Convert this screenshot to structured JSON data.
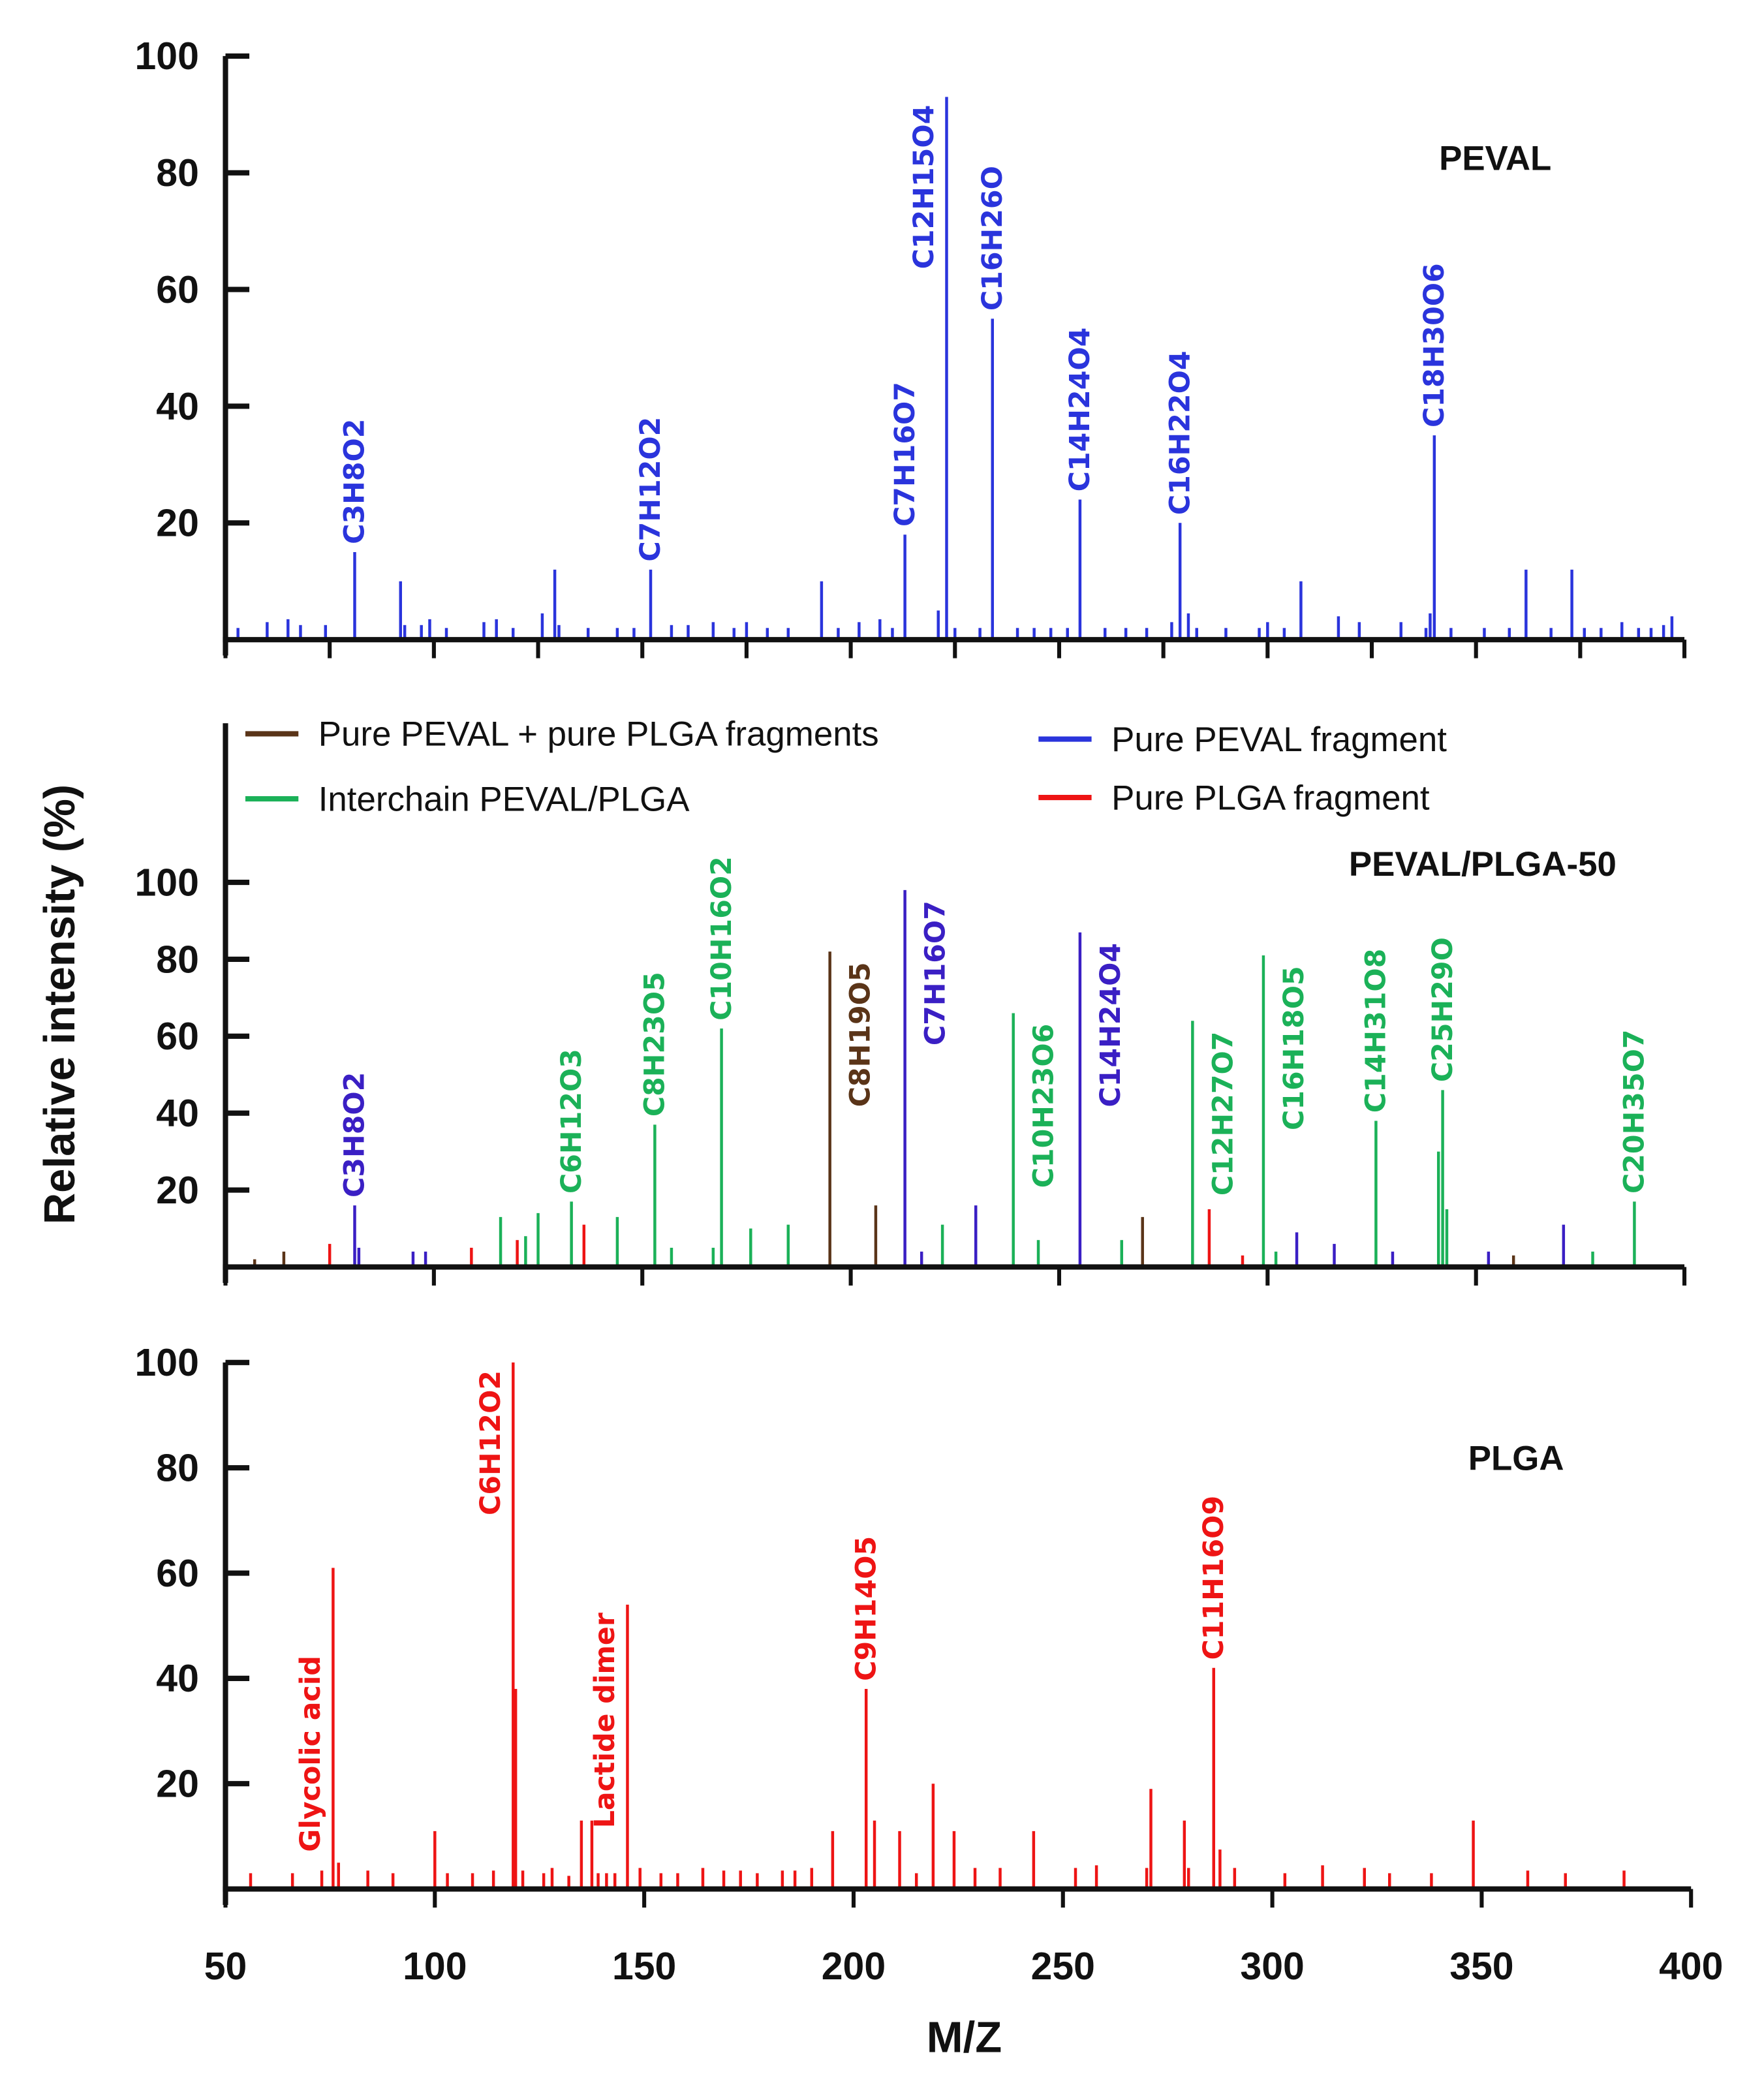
{
  "colors": {
    "blue": "#2a34dc",
    "purple": "#3a1fc4",
    "green": "#1bb158",
    "brown": "#5a3418",
    "red": "#ee1414",
    "axis": "#111111"
  },
  "chart_data": [
    {
      "type": "bar",
      "title": "PEVAL",
      "xlim": [
        50,
        400
      ],
      "ylim": [
        0,
        100
      ],
      "yticks": [
        20,
        40,
        60,
        80,
        100
      ],
      "xtick_step": 25,
      "peaks": [
        {
          "mz": 53,
          "y": 2,
          "c": "blue"
        },
        {
          "mz": 60,
          "y": 3,
          "c": "blue"
        },
        {
          "mz": 65,
          "y": 3.5,
          "c": "blue"
        },
        {
          "mz": 68,
          "y": 2.5,
          "c": "blue"
        },
        {
          "mz": 74,
          "y": 2.5,
          "c": "blue"
        },
        {
          "mz": 81,
          "y": 15,
          "c": "blue",
          "label": "C3H8O2",
          "side": "above"
        },
        {
          "mz": 92,
          "y": 10,
          "c": "blue"
        },
        {
          "mz": 93,
          "y": 2.5,
          "c": "blue"
        },
        {
          "mz": 97,
          "y": 2.5,
          "c": "blue"
        },
        {
          "mz": 99,
          "y": 3.5,
          "c": "blue"
        },
        {
          "mz": 103,
          "y": 2,
          "c": "blue"
        },
        {
          "mz": 112,
          "y": 3,
          "c": "blue"
        },
        {
          "mz": 115,
          "y": 3.5,
          "c": "blue"
        },
        {
          "mz": 119,
          "y": 2,
          "c": "blue"
        },
        {
          "mz": 126,
          "y": 4.5,
          "c": "blue"
        },
        {
          "mz": 129,
          "y": 12,
          "c": "blue"
        },
        {
          "mz": 130,
          "y": 2.5,
          "c": "blue"
        },
        {
          "mz": 137,
          "y": 2,
          "c": "blue"
        },
        {
          "mz": 144,
          "y": 2,
          "c": "blue"
        },
        {
          "mz": 148,
          "y": 2,
          "c": "blue"
        },
        {
          "mz": 152,
          "y": 12,
          "c": "blue",
          "label": "C7H12O2",
          "side": "above"
        },
        {
          "mz": 157,
          "y": 2.5,
          "c": "blue"
        },
        {
          "mz": 161,
          "y": 2.5,
          "c": "blue"
        },
        {
          "mz": 167,
          "y": 3,
          "c": "blue"
        },
        {
          "mz": 172,
          "y": 2,
          "c": "blue"
        },
        {
          "mz": 175,
          "y": 3,
          "c": "blue"
        },
        {
          "mz": 180,
          "y": 2,
          "c": "blue"
        },
        {
          "mz": 185,
          "y": 2,
          "c": "blue"
        },
        {
          "mz": 193,
          "y": 10,
          "c": "blue"
        },
        {
          "mz": 197,
          "y": 2,
          "c": "blue"
        },
        {
          "mz": 202,
          "y": 3,
          "c": "blue"
        },
        {
          "mz": 207,
          "y": 3.5,
          "c": "blue"
        },
        {
          "mz": 210,
          "y": 2,
          "c": "blue"
        },
        {
          "mz": 213,
          "y": 18,
          "c": "blue",
          "label": "C7H16O7",
          "side": "above"
        },
        {
          "mz": 221,
          "y": 5,
          "c": "blue"
        },
        {
          "mz": 223,
          "y": 93,
          "c": "blue",
          "label": "C12H15O4",
          "side": "left"
        },
        {
          "mz": 225,
          "y": 2,
          "c": "blue"
        },
        {
          "mz": 231,
          "y": 2,
          "c": "blue"
        },
        {
          "mz": 234,
          "y": 55,
          "c": "blue",
          "label": "C16H26O",
          "side": "above"
        },
        {
          "mz": 240,
          "y": 2,
          "c": "blue"
        },
        {
          "mz": 244,
          "y": 2,
          "c": "blue"
        },
        {
          "mz": 248,
          "y": 2,
          "c": "blue"
        },
        {
          "mz": 252,
          "y": 2,
          "c": "blue"
        },
        {
          "mz": 255,
          "y": 24,
          "c": "blue",
          "label": "C14H24O4",
          "side": "above"
        },
        {
          "mz": 261,
          "y": 2,
          "c": "blue"
        },
        {
          "mz": 266,
          "y": 2,
          "c": "blue"
        },
        {
          "mz": 271,
          "y": 2,
          "c": "blue"
        },
        {
          "mz": 277,
          "y": 3,
          "c": "blue"
        },
        {
          "mz": 279,
          "y": 20,
          "c": "blue",
          "label": "C16H22O4",
          "side": "above"
        },
        {
          "mz": 281,
          "y": 4.5,
          "c": "blue"
        },
        {
          "mz": 283,
          "y": 2,
          "c": "blue"
        },
        {
          "mz": 290,
          "y": 2,
          "c": "blue"
        },
        {
          "mz": 298,
          "y": 2,
          "c": "blue"
        },
        {
          "mz": 300,
          "y": 3,
          "c": "blue"
        },
        {
          "mz": 304,
          "y": 2,
          "c": "blue"
        },
        {
          "mz": 308,
          "y": 10,
          "c": "blue"
        },
        {
          "mz": 317,
          "y": 4,
          "c": "blue"
        },
        {
          "mz": 322,
          "y": 3,
          "c": "blue"
        },
        {
          "mz": 332,
          "y": 3,
          "c": "blue"
        },
        {
          "mz": 338,
          "y": 2,
          "c": "blue"
        },
        {
          "mz": 339,
          "y": 4.5,
          "c": "blue"
        },
        {
          "mz": 340,
          "y": 35,
          "c": "blue",
          "label": "C18H30O6",
          "side": "above"
        },
        {
          "mz": 344,
          "y": 2,
          "c": "blue"
        },
        {
          "mz": 352,
          "y": 2,
          "c": "blue"
        },
        {
          "mz": 358,
          "y": 2,
          "c": "blue"
        },
        {
          "mz": 362,
          "y": 12,
          "c": "blue"
        },
        {
          "mz": 368,
          "y": 2,
          "c": "blue"
        },
        {
          "mz": 373,
          "y": 12,
          "c": "blue"
        },
        {
          "mz": 376,
          "y": 2,
          "c": "blue"
        },
        {
          "mz": 380,
          "y": 2,
          "c": "blue"
        },
        {
          "mz": 385,
          "y": 3,
          "c": "blue"
        },
        {
          "mz": 389,
          "y": 2,
          "c": "blue"
        },
        {
          "mz": 392,
          "y": 2,
          "c": "blue"
        },
        {
          "mz": 395,
          "y": 2.5,
          "c": "blue"
        },
        {
          "mz": 397,
          "y": 4,
          "c": "blue"
        }
      ]
    },
    {
      "type": "bar",
      "title": "PEVAL/PLGA-50",
      "xlim": [
        50,
        400
      ],
      "ylim": [
        0,
        100
      ],
      "yticks": [
        20,
        40,
        60,
        80,
        100
      ],
      "xtick_step": 50,
      "legend": [
        {
          "label": "Pure PEVAL + pure PLGA fragments",
          "c": "brown",
          "position": "top-left"
        },
        {
          "label": "Interchain PEVAL/PLGA",
          "c": "green",
          "position": "top-left"
        },
        {
          "label": "Pure PEVAL fragment",
          "c": "blue",
          "position": "top-right"
        },
        {
          "label": "Pure PLGA fragment",
          "c": "red",
          "position": "top-right"
        }
      ],
      "peaks": [
        {
          "mz": 57,
          "y": 2,
          "c": "brown"
        },
        {
          "mz": 64,
          "y": 4,
          "c": "brown"
        },
        {
          "mz": 75,
          "y": 6,
          "c": "red"
        },
        {
          "mz": 81,
          "y": 16,
          "c": "purple",
          "label": "C3H8O2",
          "side": "above"
        },
        {
          "mz": 82,
          "y": 5,
          "c": "purple"
        },
        {
          "mz": 95,
          "y": 4,
          "c": "purple"
        },
        {
          "mz": 98,
          "y": 4,
          "c": "purple"
        },
        {
          "mz": 109,
          "y": 5,
          "c": "red"
        },
        {
          "mz": 116,
          "y": 13,
          "c": "green"
        },
        {
          "mz": 120,
          "y": 7,
          "c": "red"
        },
        {
          "mz": 122,
          "y": 8,
          "c": "green"
        },
        {
          "mz": 125,
          "y": 14,
          "c": "green"
        },
        {
          "mz": 133,
          "y": 17,
          "c": "green",
          "label": "C6H12O3",
          "side": "above"
        },
        {
          "mz": 136,
          "y": 11,
          "c": "red"
        },
        {
          "mz": 144,
          "y": 13,
          "c": "green"
        },
        {
          "mz": 153,
          "y": 37,
          "c": "green",
          "label": "C8H23O5",
          "side": "above"
        },
        {
          "mz": 157,
          "y": 5,
          "c": "green"
        },
        {
          "mz": 167,
          "y": 5,
          "c": "green"
        },
        {
          "mz": 169,
          "y": 62,
          "c": "green",
          "label": "C10H16O2",
          "side": "above"
        },
        {
          "mz": 176,
          "y": 10,
          "c": "green"
        },
        {
          "mz": 185,
          "y": 11,
          "c": "green"
        },
        {
          "mz": 195,
          "y": 82,
          "c": "brown",
          "label": "C8H19O5",
          "side": "right"
        },
        {
          "mz": 206,
          "y": 16,
          "c": "brown"
        },
        {
          "mz": 213,
          "y": 98,
          "c": "purple",
          "label": "C7H16O7",
          "side": "right"
        },
        {
          "mz": 217,
          "y": 4,
          "c": "purple"
        },
        {
          "mz": 222,
          "y": 11,
          "c": "green"
        },
        {
          "mz": 230,
          "y": 16,
          "c": "purple"
        },
        {
          "mz": 239,
          "y": 66,
          "c": "green",
          "label": "C10H23O6",
          "side": "right"
        },
        {
          "mz": 245,
          "y": 7,
          "c": "green"
        },
        {
          "mz": 255,
          "y": 87,
          "c": "purple",
          "label": "C14H24O4",
          "side": "right"
        },
        {
          "mz": 265,
          "y": 7,
          "c": "green"
        },
        {
          "mz": 270,
          "y": 13,
          "c": "brown"
        },
        {
          "mz": 282,
          "y": 64,
          "c": "green",
          "label": "C12H27O7",
          "side": "right"
        },
        {
          "mz": 286,
          "y": 15,
          "c": "red"
        },
        {
          "mz": 294,
          "y": 3,
          "c": "red"
        },
        {
          "mz": 299,
          "y": 81,
          "c": "green",
          "label": "C16H18O5",
          "side": "right"
        },
        {
          "mz": 302,
          "y": 4,
          "c": "green"
        },
        {
          "mz": 307,
          "y": 9,
          "c": "purple"
        },
        {
          "mz": 316,
          "y": 6,
          "c": "purple"
        },
        {
          "mz": 326,
          "y": 38,
          "c": "green",
          "label": "C14H31O8",
          "side": "above"
        },
        {
          "mz": 330,
          "y": 4,
          "c": "purple"
        },
        {
          "mz": 341,
          "y": 30,
          "c": "green"
        },
        {
          "mz": 342,
          "y": 46,
          "c": "green",
          "label": "C25H29O",
          "side": "above"
        },
        {
          "mz": 343,
          "y": 15,
          "c": "green"
        },
        {
          "mz": 353,
          "y": 4,
          "c": "purple"
        },
        {
          "mz": 359,
          "y": 3,
          "c": "brown"
        },
        {
          "mz": 371,
          "y": 11,
          "c": "purple"
        },
        {
          "mz": 378,
          "y": 4,
          "c": "green"
        },
        {
          "mz": 388,
          "y": 17,
          "c": "green",
          "label": "C20H35O7",
          "side": "above"
        }
      ]
    },
    {
      "type": "bar",
      "title": "PLGA",
      "xlabel": "M/Z",
      "ylabel": "Relative intensity (%)",
      "xlim": [
        50,
        400
      ],
      "ylim": [
        0,
        100
      ],
      "yticks": [
        20,
        40,
        60,
        80,
        100
      ],
      "xticks": [
        50,
        100,
        150,
        200,
        250,
        300,
        350,
        400
      ],
      "peaks": [
        {
          "mz": 56,
          "y": 3,
          "c": "red"
        },
        {
          "mz": 66,
          "y": 3,
          "c": "red"
        },
        {
          "mz": 73,
          "y": 3.5,
          "c": "red"
        },
        {
          "mz": 75.7,
          "y": 61,
          "c": "red",
          "label": "Glycolic acid",
          "side": "left-low"
        },
        {
          "mz": 77,
          "y": 5,
          "c": "red"
        },
        {
          "mz": 84,
          "y": 3.5,
          "c": "red"
        },
        {
          "mz": 90,
          "y": 3,
          "c": "red"
        },
        {
          "mz": 100,
          "y": 11,
          "c": "red"
        },
        {
          "mz": 103,
          "y": 3,
          "c": "red"
        },
        {
          "mz": 109,
          "y": 3,
          "c": "red"
        },
        {
          "mz": 114,
          "y": 3.5,
          "c": "red"
        },
        {
          "mz": 118.7,
          "y": 100,
          "c": "red",
          "label": "C6H12O2",
          "side": "left"
        },
        {
          "mz": 119.3,
          "y": 38,
          "c": "red"
        },
        {
          "mz": 121,
          "y": 3.5,
          "c": "red"
        },
        {
          "mz": 126,
          "y": 3,
          "c": "red"
        },
        {
          "mz": 128,
          "y": 4,
          "c": "red"
        },
        {
          "mz": 132,
          "y": 2.5,
          "c": "red"
        },
        {
          "mz": 135,
          "y": 13,
          "c": "red"
        },
        {
          "mz": 137.5,
          "y": 13,
          "c": "red"
        },
        {
          "mz": 139,
          "y": 3,
          "c": "red"
        },
        {
          "mz": 141,
          "y": 3,
          "c": "red"
        },
        {
          "mz": 143,
          "y": 3,
          "c": "red"
        },
        {
          "mz": 146,
          "y": 54,
          "c": "red",
          "label": "Lactide dimer",
          "side": "left"
        },
        {
          "mz": 149,
          "y": 4,
          "c": "red"
        },
        {
          "mz": 154,
          "y": 3,
          "c": "red"
        },
        {
          "mz": 158,
          "y": 3,
          "c": "red"
        },
        {
          "mz": 164,
          "y": 4,
          "c": "red"
        },
        {
          "mz": 169,
          "y": 3.5,
          "c": "red"
        },
        {
          "mz": 173,
          "y": 3.5,
          "c": "red"
        },
        {
          "mz": 177,
          "y": 3,
          "c": "red"
        },
        {
          "mz": 183,
          "y": 3.5,
          "c": "red"
        },
        {
          "mz": 186,
          "y": 3.5,
          "c": "red"
        },
        {
          "mz": 190,
          "y": 4,
          "c": "red"
        },
        {
          "mz": 195,
          "y": 11,
          "c": "red"
        },
        {
          "mz": 203,
          "y": 38,
          "c": "red",
          "label": "C9H14O5",
          "side": "above"
        },
        {
          "mz": 205,
          "y": 13,
          "c": "red"
        },
        {
          "mz": 211,
          "y": 11,
          "c": "red"
        },
        {
          "mz": 215,
          "y": 3,
          "c": "red"
        },
        {
          "mz": 219,
          "y": 20,
          "c": "red"
        },
        {
          "mz": 224,
          "y": 11,
          "c": "red"
        },
        {
          "mz": 229,
          "y": 4,
          "c": "red"
        },
        {
          "mz": 235,
          "y": 4,
          "c": "red"
        },
        {
          "mz": 243,
          "y": 11,
          "c": "red"
        },
        {
          "mz": 253,
          "y": 4,
          "c": "red"
        },
        {
          "mz": 258,
          "y": 4.5,
          "c": "red"
        },
        {
          "mz": 270,
          "y": 4,
          "c": "red"
        },
        {
          "mz": 271,
          "y": 19,
          "c": "red"
        },
        {
          "mz": 279,
          "y": 13,
          "c": "red"
        },
        {
          "mz": 280,
          "y": 4,
          "c": "red"
        },
        {
          "mz": 286,
          "y": 42,
          "c": "red",
          "label": "C11H16O9",
          "side": "above"
        },
        {
          "mz": 287.5,
          "y": 7.5,
          "c": "red"
        },
        {
          "mz": 291,
          "y": 4,
          "c": "red"
        },
        {
          "mz": 303,
          "y": 3,
          "c": "red"
        },
        {
          "mz": 312,
          "y": 4.5,
          "c": "red"
        },
        {
          "mz": 322,
          "y": 4,
          "c": "red"
        },
        {
          "mz": 328,
          "y": 3,
          "c": "red"
        },
        {
          "mz": 338,
          "y": 3,
          "c": "red"
        },
        {
          "mz": 348,
          "y": 13,
          "c": "red"
        },
        {
          "mz": 361,
          "y": 3.5,
          "c": "red"
        },
        {
          "mz": 370,
          "y": 3,
          "c": "red"
        },
        {
          "mz": 384,
          "y": 3.5,
          "c": "red"
        }
      ]
    }
  ]
}
